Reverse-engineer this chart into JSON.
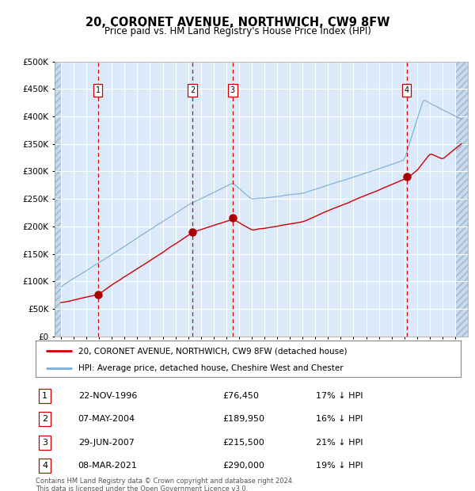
{
  "title": "20, CORONET AVENUE, NORTHWICH, CW9 8FW",
  "subtitle": "Price paid vs. HM Land Registry's House Price Index (HPI)",
  "footer": "Contains HM Land Registry data © Crown copyright and database right 2024.\nThis data is licensed under the Open Government Licence v3.0.",
  "legend_line1": "20, CORONET AVENUE, NORTHWICH, CW9 8FW (detached house)",
  "legend_line2": "HPI: Average price, detached house, Cheshire West and Chester",
  "sales": [
    {
      "label": "1",
      "date": "22-NOV-1996",
      "price": 76450,
      "pct": "17%",
      "year": 1996.9
    },
    {
      "label": "2",
      "date": "07-MAY-2004",
      "price": 189950,
      "pct": "16%",
      "year": 2004.35
    },
    {
      "label": "3",
      "date": "29-JUN-2007",
      "price": 215500,
      "pct": "21%",
      "year": 2007.5
    },
    {
      "label": "4",
      "date": "08-MAR-2021",
      "price": 290000,
      "pct": "19%",
      "year": 2021.18
    }
  ],
  "ylim": [
    0,
    500000
  ],
  "yticks": [
    0,
    50000,
    100000,
    150000,
    200000,
    250000,
    300000,
    350000,
    400000,
    450000,
    500000
  ],
  "xlim_start": 1993.5,
  "xlim_end": 2026.0,
  "data_start": 1994,
  "data_end": 2025,
  "background_color": "#dce9f8",
  "hatch_color": "#b8cfe0",
  "grid_color": "#ffffff",
  "red_line_color": "#cc0000",
  "blue_line_color": "#7aadd4",
  "marker_color": "#aa0000",
  "vline_color": "#dd0000",
  "box_edge_color": "#cc0000",
  "title_fontsize": 10.5,
  "subtitle_fontsize": 8.5,
  "tick_fontsize": 6.5,
  "ytick_fontsize": 7.5,
  "legend_fontsize": 7.5,
  "table_fontsize": 8.0,
  "footer_fontsize": 6.0
}
